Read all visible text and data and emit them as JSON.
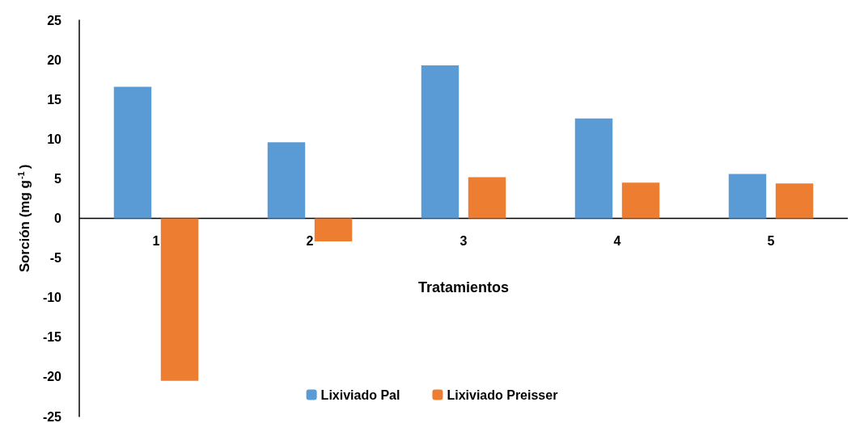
{
  "chart_data": {
    "type": "bar",
    "xlabel": "Tratamientos",
    "ylabel": "Sorción (mg g$^{-1}$)",
    "categories": [
      "1",
      "2",
      "3",
      "4",
      "5"
    ],
    "series": [
      {
        "name": "Lixiviado Pal",
        "color": "#5b9bd5",
        "values": [
          16.6,
          9.6,
          19.3,
          12.6,
          5.6
        ]
      },
      {
        "name": "Lixiviado Preisser",
        "color": "#ed7d31",
        "values": [
          -20.5,
          -2.9,
          5.2,
          4.5,
          4.4
        ]
      }
    ],
    "ylim": [
      -25,
      25
    ],
    "yticks": [
      -25,
      -20,
      -15,
      -10,
      -5,
      0,
      5,
      10,
      15,
      20,
      25
    ],
    "grid": false,
    "legend": "bottom"
  }
}
